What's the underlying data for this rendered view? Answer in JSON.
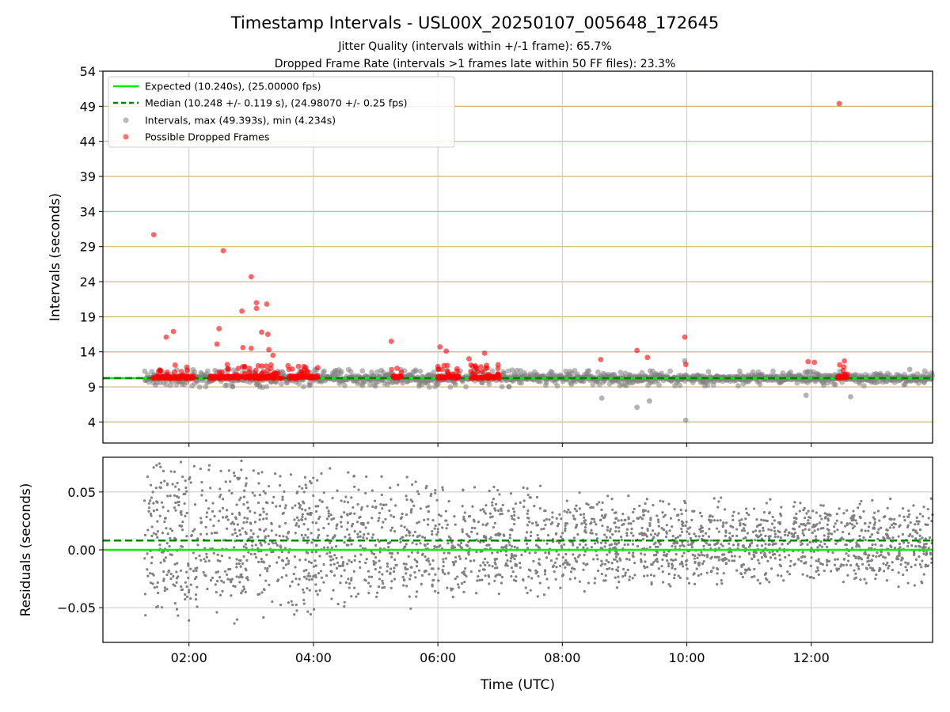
{
  "figure": {
    "title": "Timestamp Intervals - USL00X_20250107_005648_172645",
    "subtitle_1": "Jitter Quality (intervals within +/-1 frame): 65.7%",
    "subtitle_2": "Dropped Frame Rate (intervals >1 frames late within 50 FF files): 23.3%"
  },
  "colors": {
    "expected": "#00ee00",
    "median": "#007f00",
    "intervals": "#808080",
    "dropped": "#ff0000",
    "hgrid": "#d2b46e",
    "vgrid": "#c8c8c8"
  },
  "chart_data": [
    {
      "type": "scatter",
      "title": "",
      "xlabel": "",
      "ylabel": "Intervals (seconds)",
      "xlim": [
        "00:37",
        "13:57"
      ],
      "ylim": [
        1,
        54
      ],
      "yticks": [
        4,
        9,
        14,
        19,
        24,
        29,
        34,
        39,
        44,
        49,
        54
      ],
      "xticks": [
        "02:00",
        "04:00",
        "06:00",
        "08:00",
        "10:00",
        "12:00"
      ],
      "grid": "horizontal and vertical",
      "legend_position": "upper-left",
      "legend": [
        "Expected (10.240s), (25.00000 fps)",
        "Median (10.248 +/- 0.119 s), (24.98070 +/- 0.25 fps)",
        "Intervals, max (49.393s), min (4.234s)",
        "Possible Dropped Frames"
      ],
      "lines": [
        {
          "name": "Expected (10.240s), (25.00000 fps)",
          "y": 10.24,
          "style": "solid"
        },
        {
          "name": "Median (10.248 +/- 0.119 s), (24.98070 +/- 0.25 fps)",
          "y": 10.248,
          "style": "dashed"
        }
      ],
      "series": [
        {
          "name": "Intervals, max (49.393s), min (4.234s)",
          "baseline": 10.24,
          "x_range": [
            "01:17",
            "13:57"
          ],
          "notable_points": [
            {
              "x": "09:59",
              "y": 4.234
            },
            {
              "x": "09:12",
              "y": 6.1
            },
            {
              "x": "08:38",
              "y": 7.4
            },
            {
              "x": "09:24",
              "y": 7.0
            },
            {
              "x": "12:38",
              "y": 7.6
            },
            {
              "x": "11:55",
              "y": 7.8
            },
            {
              "x": "09:58",
              "y": 12.7
            },
            {
              "x": "13:35",
              "y": 11.5
            }
          ]
        },
        {
          "name": "Possible Dropped Frames",
          "cluster_y": 10.2,
          "clusters": [
            [
              "01:25",
              "02:05"
            ],
            [
              "02:20",
              "03:30"
            ],
            [
              "03:35",
              "04:05"
            ],
            [
              "05:15",
              "05:25"
            ],
            [
              "06:00",
              "06:20"
            ],
            [
              "06:30",
              "07:00"
            ],
            [
              "12:25",
              "12:35"
            ]
          ],
          "notable_points": [
            {
              "x": "01:26",
              "y": 30.7
            },
            {
              "x": "02:33",
              "y": 28.4
            },
            {
              "x": "03:00",
              "y": 24.7
            },
            {
              "x": "03:05",
              "y": 21.0
            },
            {
              "x": "03:15",
              "y": 20.8
            },
            {
              "x": "03:05",
              "y": 20.2
            },
            {
              "x": "02:51",
              "y": 19.8
            },
            {
              "x": "02:29",
              "y": 17.3
            },
            {
              "x": "01:45",
              "y": 16.9
            },
            {
              "x": "03:10",
              "y": 16.8
            },
            {
              "x": "03:16",
              "y": 16.5
            },
            {
              "x": "01:38",
              "y": 16.1
            },
            {
              "x": "09:58",
              "y": 16.1
            },
            {
              "x": "05:15",
              "y": 15.5
            },
            {
              "x": "02:27",
              "y": 15.1
            },
            {
              "x": "06:02",
              "y": 14.7
            },
            {
              "x": "02:52",
              "y": 14.6
            },
            {
              "x": "03:00",
              "y": 14.5
            },
            {
              "x": "03:17",
              "y": 14.3
            },
            {
              "x": "09:12",
              "y": 14.2
            },
            {
              "x": "06:08",
              "y": 14.1
            },
            {
              "x": "06:45",
              "y": 13.8
            },
            {
              "x": "03:21",
              "y": 13.5
            },
            {
              "x": "09:22",
              "y": 13.2
            },
            {
              "x": "06:30",
              "y": 13.0
            },
            {
              "x": "08:37",
              "y": 12.9
            },
            {
              "x": "11:57",
              "y": 12.6
            },
            {
              "x": "12:03",
              "y": 12.5
            },
            {
              "x": "12:32",
              "y": 12.7
            },
            {
              "x": "09:59",
              "y": 12.2
            },
            {
              "x": "12:27",
              "y": 49.393
            }
          ]
        }
      ]
    },
    {
      "type": "scatter",
      "title": "",
      "xlabel": "Time (UTC)",
      "ylabel": "Residuals (seconds)",
      "xlim": [
        "00:37",
        "13:57"
      ],
      "ylim": [
        -0.08,
        0.08
      ],
      "yticks": [
        -0.05,
        0.0,
        0.05
      ],
      "ytick_labels": [
        "−0.05",
        "0.00",
        "0.05"
      ],
      "xticks": [
        "02:00",
        "04:00",
        "06:00",
        "08:00",
        "10:00",
        "12:00"
      ],
      "grid": "horizontal and vertical",
      "lines": [
        {
          "name": "Expected",
          "y": 0.0,
          "style": "solid"
        },
        {
          "name": "Median",
          "y": 0.008,
          "style": "dashed"
        }
      ],
      "series": [
        {
          "name": "Residuals",
          "x_range": [
            "01:17",
            "13:57"
          ],
          "spread_start": 0.08,
          "spread_end": 0.04
        }
      ]
    }
  ]
}
